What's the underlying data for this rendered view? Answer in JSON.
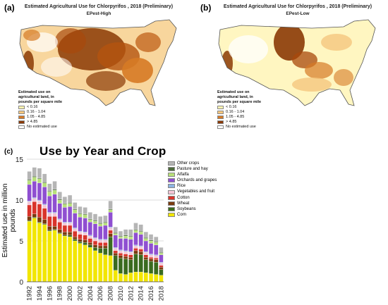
{
  "panel_a": {
    "label": "(a)",
    "title": "Estimated Agricultural Use for Chlorpyrifos , 2018 (Preliminary)",
    "subtitle": "EPest-High"
  },
  "panel_b": {
    "label": "(b)",
    "title": "Estimated Agricultural Use for Chlorpyrifos , 2018 (Preliminary)",
    "subtitle": "EPest-Low"
  },
  "map_legend": {
    "title_lines": [
      "Estimated use on",
      "agricultural land, in",
      "pounds per square mile"
    ],
    "items": [
      {
        "label": "< 0.16",
        "color": "#fff3b0"
      },
      {
        "label": "0.16 - 1.04",
        "color": "#f5c77e"
      },
      {
        "label": "1.05 - 4.85",
        "color": "#d67a25"
      },
      {
        "label": "> 4.85",
        "color": "#8b3a05"
      },
      {
        "label": "No estimated use",
        "color": "#ffffff"
      }
    ]
  },
  "panel_c": {
    "label": "(c)"
  },
  "chart_data": {
    "type": "bar",
    "stacked": true,
    "title": "Use by Year and Crop",
    "xlabel": "",
    "ylabel": "Estimated use in million pounds",
    "ylim": [
      0,
      15
    ],
    "yticks": [
      0,
      5,
      10,
      15
    ],
    "x": [
      1992,
      1993,
      1994,
      1995,
      1996,
      1997,
      1998,
      1999,
      2000,
      2001,
      2002,
      2003,
      2004,
      2005,
      2006,
      2007,
      2008,
      2009,
      2010,
      2011,
      2012,
      2013,
      2014,
      2015,
      2016,
      2017,
      2018
    ],
    "xticks": [
      1992,
      1994,
      1996,
      1998,
      2000,
      2002,
      2004,
      2006,
      2008,
      2010,
      2012,
      2014,
      2016,
      2018
    ],
    "grid": "horizontal",
    "legend_position": "right",
    "series": [
      {
        "name": "Corn",
        "color": "#f2e600",
        "values": [
          7.4,
          7.8,
          7.2,
          7.0,
          6.2,
          6.3,
          5.9,
          5.6,
          5.5,
          5.0,
          4.7,
          4.5,
          4.2,
          3.8,
          3.5,
          3.3,
          3.2,
          1.4,
          1.0,
          0.9,
          1.1,
          1.2,
          1.2,
          1.1,
          1.0,
          0.9,
          0.8
        ]
      },
      {
        "name": "Soybeans",
        "color": "#3a6b1f",
        "values": [
          0.1,
          0.1,
          0.1,
          0.1,
          0.1,
          0.1,
          0.1,
          0.1,
          0.2,
          0.2,
          0.2,
          0.3,
          0.3,
          0.4,
          0.6,
          0.8,
          2.3,
          1.8,
          1.9,
          1.9,
          1.6,
          2.2,
          2.1,
          1.6,
          1.5,
          1.5,
          0.7
        ]
      },
      {
        "name": "Wheat",
        "color": "#7a3b10",
        "values": [
          0.5,
          0.4,
          0.6,
          0.5,
          0.5,
          0.4,
          0.4,
          0.4,
          0.4,
          0.3,
          0.3,
          0.3,
          0.3,
          0.3,
          0.3,
          0.3,
          0.4,
          0.3,
          0.3,
          0.3,
          0.3,
          0.4,
          0.4,
          0.3,
          0.3,
          0.3,
          0.3
        ]
      },
      {
        "name": "Cotton",
        "color": "#d9342b",
        "values": [
          1.4,
          1.5,
          1.6,
          1.4,
          1.2,
          1.2,
          0.9,
          0.8,
          0.8,
          0.7,
          0.6,
          0.6,
          0.5,
          0.5,
          0.4,
          0.4,
          0.4,
          0.3,
          0.3,
          0.3,
          0.3,
          0.3,
          0.3,
          0.3,
          0.2,
          0.2,
          0.2
        ]
      },
      {
        "name": "Vegetables and fruit",
        "color": "#f4c6d6",
        "values": [
          0.4,
          0.4,
          0.4,
          0.4,
          0.4,
          0.4,
          0.3,
          0.3,
          0.3,
          0.3,
          0.3,
          0.3,
          0.3,
          0.3,
          0.3,
          0.3,
          0.3,
          0.3,
          0.3,
          0.3,
          0.3,
          0.3,
          0.3,
          0.3,
          0.3,
          0.3,
          0.3
        ]
      },
      {
        "name": "Rice",
        "color": "#8db4e2",
        "values": [
          0.1,
          0.1,
          0.1,
          0.1,
          0.1,
          0.1,
          0.1,
          0.1,
          0.1,
          0.1,
          0.1,
          0.1,
          0.1,
          0.1,
          0.1,
          0.1,
          0.1,
          0.1,
          0.1,
          0.1,
          0.1,
          0.1,
          0.1,
          0.1,
          0.1,
          0.1,
          0.1
        ]
      },
      {
        "name": "Orchards and grapes",
        "color": "#8f4fd1",
        "values": [
          2.0,
          2.0,
          2.1,
          2.1,
          2.0,
          2.2,
          1.9,
          1.8,
          1.9,
          1.8,
          1.7,
          1.7,
          1.6,
          1.7,
          1.6,
          1.7,
          1.8,
          1.5,
          1.4,
          1.5,
          1.5,
          1.5,
          1.4,
          1.3,
          1.3,
          1.2,
          0.9
        ]
      },
      {
        "name": "Alfalfa",
        "color": "#b8e07a",
        "values": [
          0.5,
          0.5,
          0.5,
          0.5,
          0.5,
          0.5,
          0.4,
          0.4,
          0.4,
          0.4,
          0.4,
          0.4,
          0.3,
          0.3,
          0.3,
          0.3,
          0.3,
          0.2,
          0.2,
          0.3,
          0.3,
          0.3,
          0.3,
          0.3,
          0.3,
          0.3,
          0.2
        ]
      },
      {
        "name": "Pasture and hay",
        "color": "#4d6b3c",
        "values": [
          0.1,
          0.1,
          0.1,
          0.1,
          0.1,
          0.1,
          0.1,
          0.1,
          0.1,
          0.1,
          0.1,
          0.1,
          0.1,
          0.1,
          0.1,
          0.1,
          0.1,
          0.1,
          0.1,
          0.1,
          0.1,
          0.1,
          0.1,
          0.1,
          0.1,
          0.1,
          0.1
        ]
      },
      {
        "name": "Other crops",
        "color": "#b5b5b5",
        "values": [
          1.0,
          1.1,
          1.2,
          1.0,
          0.9,
          1.0,
          0.9,
          0.8,
          0.9,
          0.8,
          0.8,
          0.8,
          0.8,
          0.8,
          0.8,
          0.8,
          1.0,
          0.7,
          0.6,
          0.7,
          0.8,
          0.8,
          0.8,
          0.7,
          0.7,
          0.6,
          0.6
        ]
      }
    ]
  }
}
